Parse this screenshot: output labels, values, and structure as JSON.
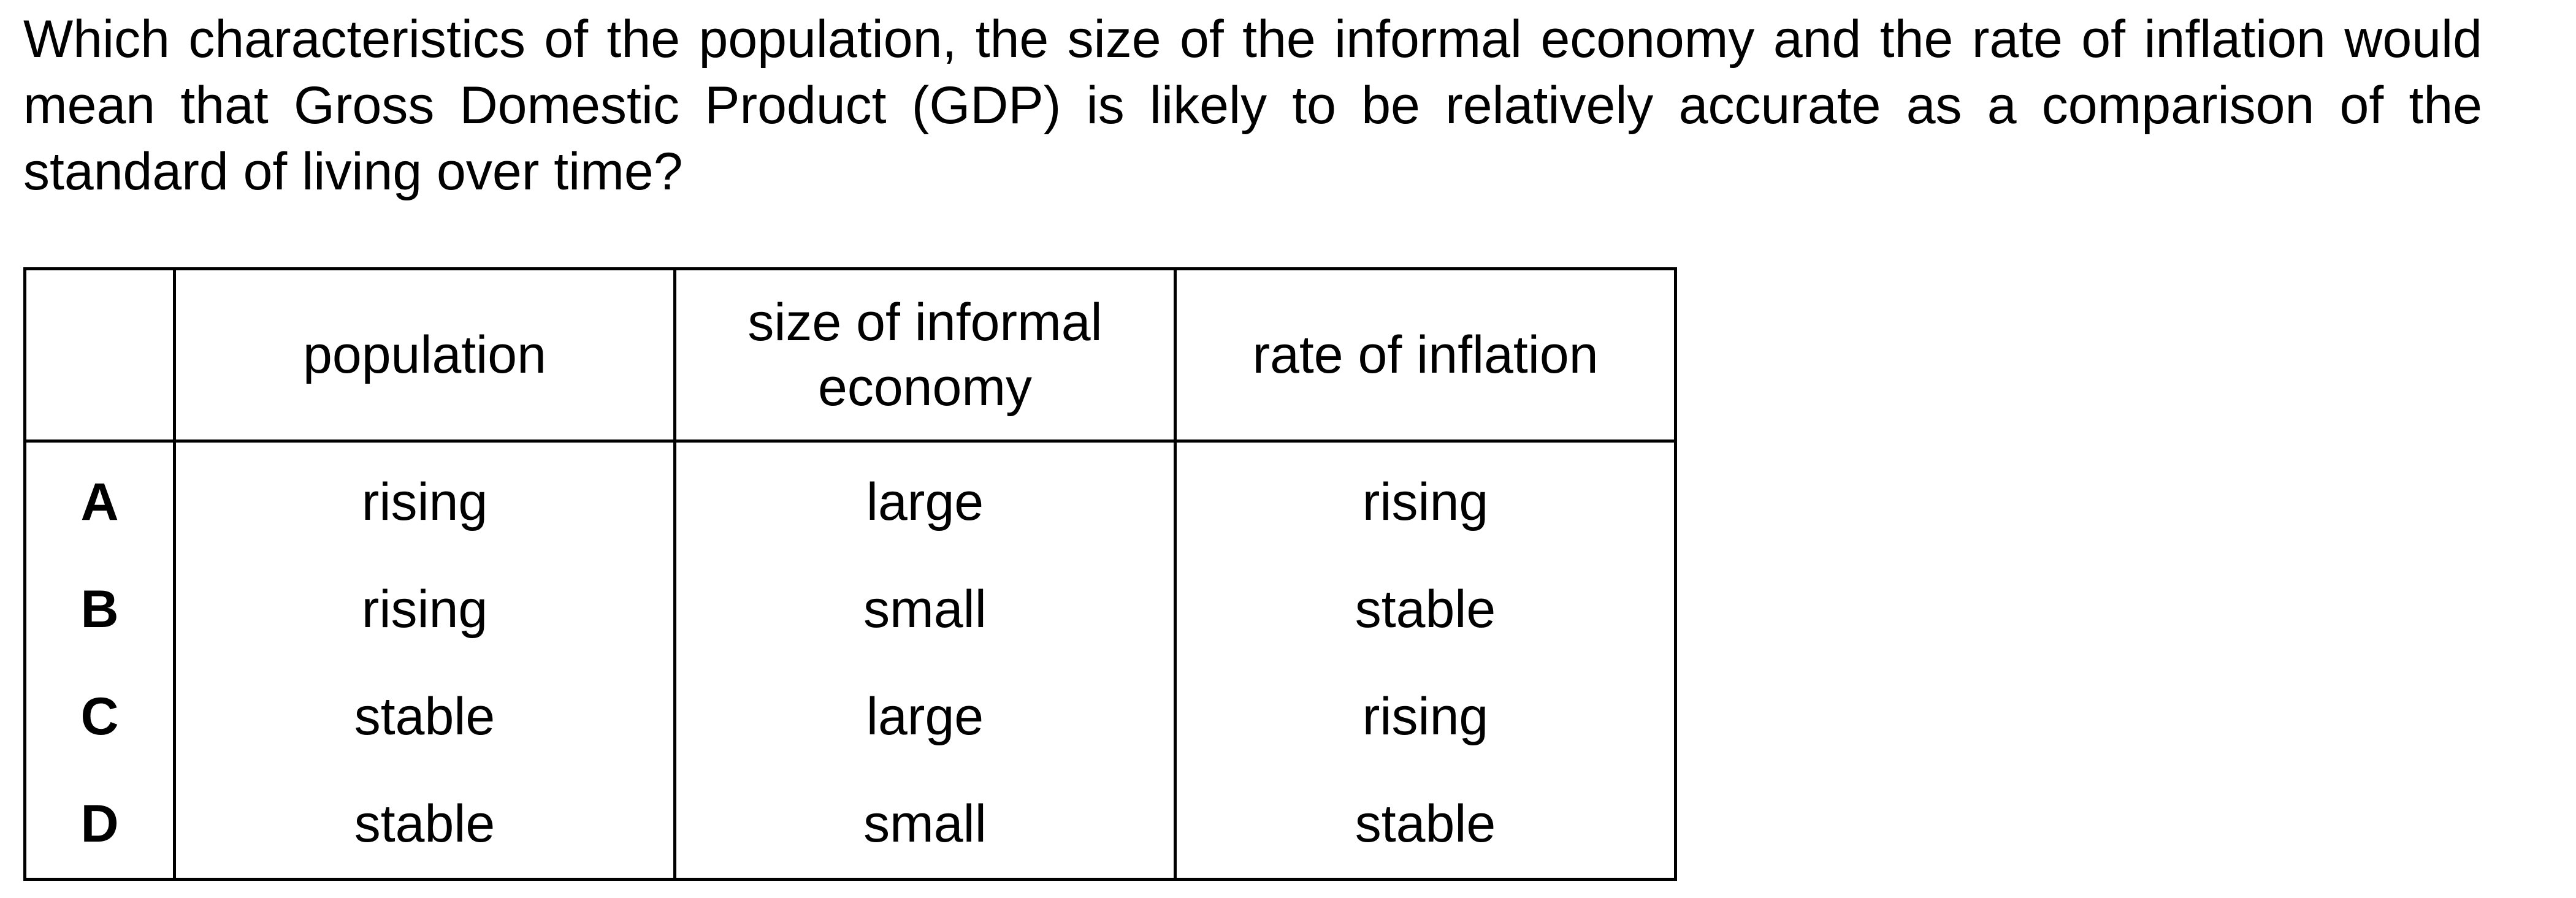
{
  "question": {
    "text": "Which characteristics of the population, the size of the informal economy and the rate of inflation would mean that Gross Domestic Product (GDP) is likely to be relatively accurate as a comparison of the standard of living over time?"
  },
  "table": {
    "headers": {
      "blank": "",
      "population": "population",
      "informal": "size of informal economy",
      "inflation": "rate of inflation"
    },
    "rows": [
      {
        "letter": "A",
        "population": "rising",
        "informal": "large",
        "inflation": "rising"
      },
      {
        "letter": "B",
        "population": "rising",
        "informal": "small",
        "inflation": "stable"
      },
      {
        "letter": "C",
        "population": "stable",
        "informal": "large",
        "inflation": "rising"
      },
      {
        "letter": "D",
        "population": "stable",
        "informal": "small",
        "inflation": "stable"
      }
    ]
  }
}
